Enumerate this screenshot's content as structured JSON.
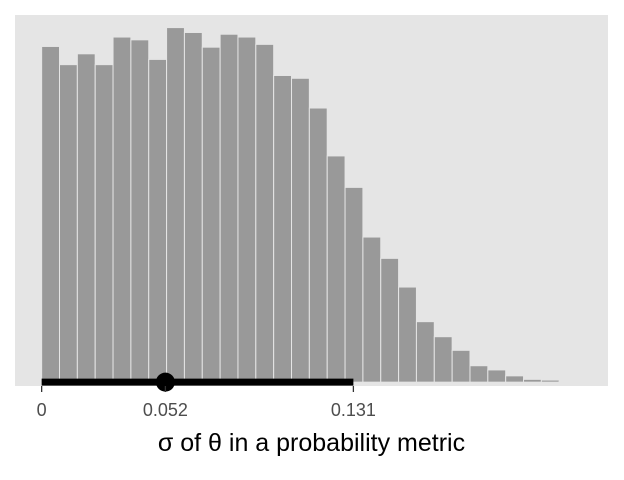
{
  "chart_data": {
    "type": "bar",
    "title": "",
    "xlabel": "σ of θ in a probability metric",
    "ylabel": "",
    "bin_width": 0.0075,
    "bins": [
      {
        "x0": 0.0,
        "count": 9.6
      },
      {
        "x0": 0.0075,
        "count": 9.08
      },
      {
        "x0": 0.015,
        "count": 9.39
      },
      {
        "x0": 0.0225,
        "count": 9.08
      },
      {
        "x0": 0.03,
        "count": 9.87
      },
      {
        "x0": 0.0375,
        "count": 9.79
      },
      {
        "x0": 0.045,
        "count": 9.23
      },
      {
        "x0": 0.0525,
        "count": 10.14
      },
      {
        "x0": 0.06,
        "count": 10.0
      },
      {
        "x0": 0.0675,
        "count": 9.58
      },
      {
        "x0": 0.075,
        "count": 9.95
      },
      {
        "x0": 0.0825,
        "count": 9.87
      },
      {
        "x0": 0.09,
        "count": 9.66
      },
      {
        "x0": 0.0975,
        "count": 8.77
      },
      {
        "x0": 0.105,
        "count": 8.69
      },
      {
        "x0": 0.1125,
        "count": 7.84
      },
      {
        "x0": 0.12,
        "count": 6.47
      },
      {
        "x0": 0.1275,
        "count": 5.57
      },
      {
        "x0": 0.135,
        "count": 4.15
      },
      {
        "x0": 0.1425,
        "count": 3.54
      },
      {
        "x0": 0.15,
        "count": 2.72
      },
      {
        "x0": 0.1575,
        "count": 1.73
      },
      {
        "x0": 0.165,
        "count": 1.3
      },
      {
        "x0": 0.1725,
        "count": 0.91
      },
      {
        "x0": 0.18,
        "count": 0.47
      },
      {
        "x0": 0.1875,
        "count": 0.35
      },
      {
        "x0": 0.195,
        "count": 0.18
      },
      {
        "x0": 0.2025,
        "count": 0.08
      },
      {
        "x0": 0.21,
        "count": 0.06
      },
      {
        "x0": 0.2175,
        "count": 0.02
      }
    ],
    "xlim": [
      -0.0112,
      0.238
    ],
    "ylim": [
      -0.11,
      10.5
    ],
    "x_ticks": [
      {
        "value": 0,
        "label": "0"
      },
      {
        "value": 0.052,
        "label": "0.052"
      },
      {
        "value": 0.131,
        "label": "0.131"
      }
    ],
    "interval": {
      "low": 0,
      "high": 0.131,
      "point": 0.052
    },
    "grid": false,
    "colors": {
      "panel": "#e5e5e5",
      "bar_fill": "#999999",
      "bar_edge": "#e5e5e5",
      "interval": "#000000",
      "tick_text": "#4d4d4d",
      "axis_title": "#000000"
    }
  }
}
